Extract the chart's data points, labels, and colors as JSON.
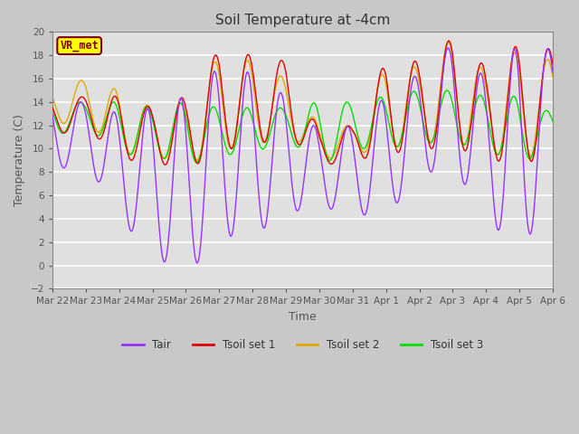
{
  "title": "Soil Temperature at -4cm",
  "xlabel": "Time",
  "ylabel": "Temperature (C)",
  "ylim": [
    -2,
    20
  ],
  "yticks": [
    -2,
    0,
    2,
    4,
    6,
    8,
    10,
    12,
    14,
    16,
    18,
    20
  ],
  "x_labels": [
    "Mar 22",
    "Mar 23",
    "Mar 24",
    "Mar 25",
    "Mar 26",
    "Mar 27",
    "Mar 28",
    "Mar 29",
    "Mar 30",
    "Mar 31",
    "Apr 1",
    "Apr 2",
    "Apr 3",
    "Apr 4",
    "Apr 5",
    "Apr 6"
  ],
  "annotation_text": "VR_met",
  "annotation_color": "#800000",
  "annotation_bg": "#ffff00",
  "colors": {
    "Tair": "#9933ff",
    "Tsoil1": "#dd0000",
    "Tsoil2": "#ddaa00",
    "Tsoil3": "#00dd00"
  },
  "bg_color": "#c8c8c8",
  "plot_bg": "#e0e0e0",
  "grid_color": "#ffffff",
  "legend_labels": [
    "Tair",
    "Tsoil set 1",
    "Tsoil set 2",
    "Tsoil set 3"
  ],
  "figsize": [
    6.4,
    4.8
  ],
  "dpi": 100
}
